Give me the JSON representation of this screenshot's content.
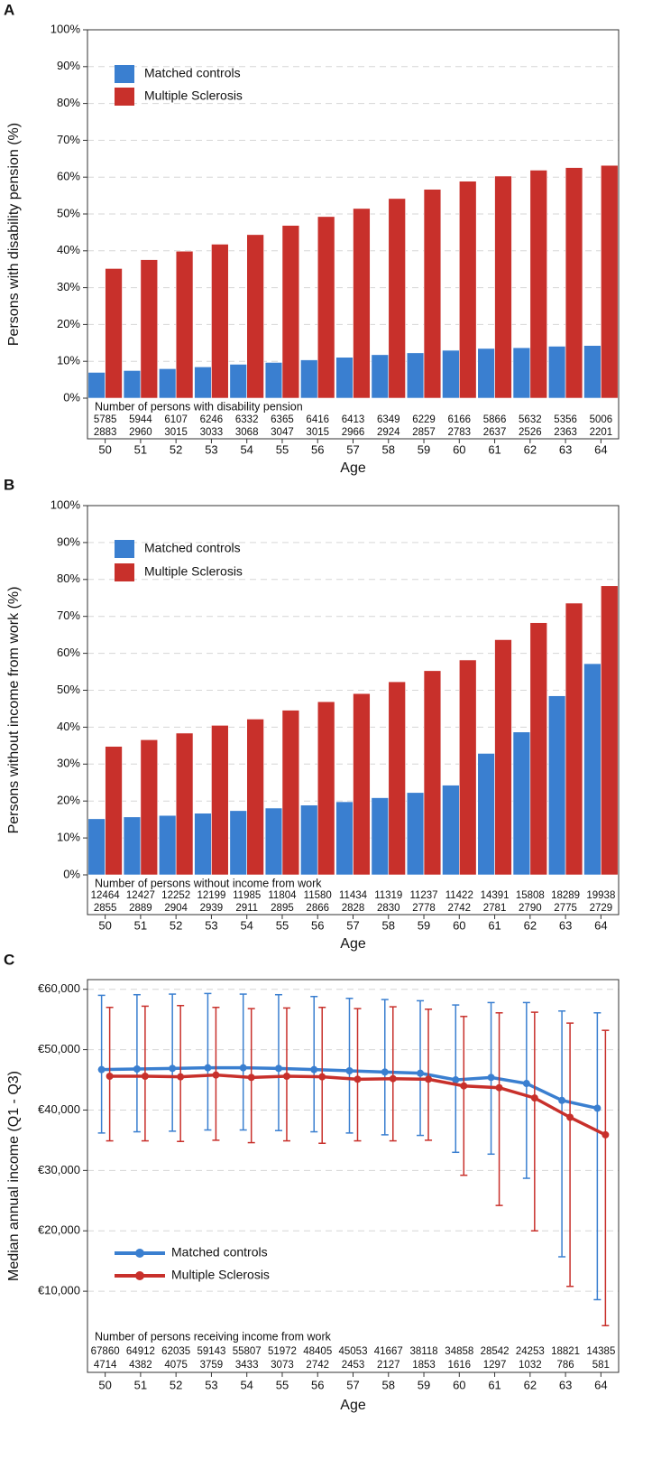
{
  "chart_data": [
    {
      "type": "bar",
      "panel": "A",
      "y_label": "Persons with disability pension (%)",
      "x_label": "Age",
      "categories": [
        "50",
        "51",
        "52",
        "53",
        "54",
        "55",
        "56",
        "57",
        "58",
        "59",
        "60",
        "61",
        "62",
        "63",
        "64"
      ],
      "counts_title": "Number of persons with disability pension",
      "series": [
        {
          "name": "Matched controls",
          "color": "#3a7fd0",
          "values": [
            7,
            7.5,
            8,
            8.5,
            9.2,
            9.7,
            10.4,
            11.1,
            11.8,
            12.3,
            13,
            13.5,
            13.7,
            14.1,
            14.3
          ],
          "counts": [
            5785,
            5944,
            6107,
            6246,
            6332,
            6365,
            6416,
            6413,
            6349,
            6229,
            6166,
            5866,
            5632,
            5356,
            5006
          ]
        },
        {
          "name": "Multiple Sclerosis",
          "color": "#c8302b",
          "values": [
            35.2,
            37.6,
            39.9,
            41.8,
            44.4,
            46.9,
            49.3,
            51.5,
            54.2,
            56.7,
            58.9,
            60.3,
            61.9,
            62.6,
            63.2
          ],
          "counts": [
            2883,
            2960,
            3015,
            3033,
            3068,
            3047,
            3015,
            2966,
            2924,
            2857,
            2783,
            2637,
            2526,
            2363,
            2201
          ]
        }
      ],
      "ylim": [
        0,
        100
      ],
      "yticks": [
        {
          "value": 0,
          "label": "0%"
        },
        {
          "value": 10,
          "label": "10%"
        },
        {
          "value": 20,
          "label": "20%"
        },
        {
          "value": 30,
          "label": "30%"
        },
        {
          "value": 40,
          "label": "40%"
        },
        {
          "value": 50,
          "label": "50%"
        },
        {
          "value": 60,
          "label": "60%"
        },
        {
          "value": 70,
          "label": "70%"
        },
        {
          "value": 80,
          "label": "80%"
        },
        {
          "value": 90,
          "label": "90%"
        },
        {
          "value": 100,
          "label": "100%"
        }
      ],
      "grid": true,
      "legend": "upper left"
    },
    {
      "type": "bar",
      "panel": "B",
      "y_label": "Persons without income from work (%)",
      "x_label": "Age",
      "categories": [
        "50",
        "51",
        "52",
        "53",
        "54",
        "55",
        "56",
        "57",
        "58",
        "59",
        "60",
        "61",
        "62",
        "63",
        "64"
      ],
      "counts_title": "Number of persons without income from work",
      "series": [
        {
          "name": "Matched controls",
          "color": "#3a7fd0",
          "values": [
            15.2,
            15.7,
            16.1,
            16.7,
            17.4,
            18.1,
            18.9,
            19.8,
            20.9,
            22.3,
            24.3,
            32.9,
            38.7,
            48.5,
            57.2
          ],
          "counts": [
            12464,
            12427,
            12252,
            12199,
            11985,
            11804,
            11580,
            11434,
            11319,
            11237,
            11422,
            14391,
            15808,
            18289,
            19938
          ]
        },
        {
          "name": "Multiple Sclerosis",
          "color": "#c8302b",
          "values": [
            34.8,
            36.6,
            38.4,
            40.5,
            42.2,
            44.6,
            46.9,
            49.1,
            52.3,
            55.3,
            58.2,
            63.7,
            68.3,
            73.6,
            78.3
          ],
          "counts": [
            2855,
            2889,
            2904,
            2939,
            2911,
            2895,
            2866,
            2828,
            2830,
            2778,
            2742,
            2781,
            2790,
            2775,
            2729
          ]
        }
      ],
      "ylim": [
        0,
        100
      ],
      "yticks": [
        {
          "value": 0,
          "label": "0%"
        },
        {
          "value": 10,
          "label": "10%"
        },
        {
          "value": 20,
          "label": "20%"
        },
        {
          "value": 30,
          "label": "30%"
        },
        {
          "value": 40,
          "label": "40%"
        },
        {
          "value": 50,
          "label": "50%"
        },
        {
          "value": 60,
          "label": "60%"
        },
        {
          "value": 70,
          "label": "70%"
        },
        {
          "value": 80,
          "label": "80%"
        },
        {
          "value": 90,
          "label": "90%"
        },
        {
          "value": 100,
          "label": "100%"
        }
      ],
      "grid": true,
      "legend": "upper left"
    },
    {
      "type": "line",
      "panel": "C",
      "y_label": "Median annual income (Q1 - Q3)",
      "x_label": "Age",
      "categories": [
        "50",
        "51",
        "52",
        "53",
        "54",
        "55",
        "56",
        "57",
        "58",
        "59",
        "60",
        "61",
        "62",
        "63",
        "64"
      ],
      "counts_title": "Number of persons receiving income from work",
      "series": [
        {
          "name": "Matched controls",
          "color": "#3a7fd0",
          "values": [
            46700,
            46800,
            46900,
            47000,
            47000,
            46900,
            46700,
            46500,
            46300,
            46100,
            45000,
            45400,
            44400,
            41600,
            40300
          ],
          "low": [
            36200,
            36400,
            36500,
            36700,
            36700,
            36600,
            36400,
            36200,
            35900,
            35800,
            33000,
            32700,
            28700,
            15700,
            8600
          ],
          "high": [
            59000,
            59100,
            59200,
            59300,
            59200,
            59100,
            58800,
            58500,
            58300,
            58100,
            57400,
            57800,
            57800,
            56400,
            56100
          ],
          "counts": [
            67860,
            64912,
            62035,
            59143,
            55807,
            51972,
            48405,
            45053,
            41667,
            38118,
            34858,
            28542,
            24253,
            18821,
            14385
          ]
        },
        {
          "name": "Multiple Sclerosis",
          "color": "#c8302b",
          "values": [
            45600,
            45600,
            45500,
            45800,
            45400,
            45600,
            45500,
            45100,
            45200,
            45100,
            44000,
            43700,
            42000,
            38800,
            35900
          ],
          "low": [
            34900,
            34900,
            34800,
            35000,
            34600,
            34900,
            34500,
            34900,
            34900,
            35000,
            29200,
            24200,
            20000,
            10800,
            4300
          ],
          "high": [
            57000,
            57200,
            57300,
            57000,
            56800,
            56900,
            57000,
            56800,
            57100,
            56700,
            55500,
            56100,
            56200,
            54400,
            53200
          ],
          "counts": [
            4714,
            4382,
            4075,
            3759,
            3433,
            3073,
            2742,
            2453,
            2127,
            1853,
            1616,
            1297,
            1032,
            786,
            581
          ]
        }
      ],
      "ylim": [
        0,
        61600
      ],
      "yticks": [
        {
          "value": 10000,
          "label": "€10,000"
        },
        {
          "value": 20000,
          "label": "€20,000"
        },
        {
          "value": 30000,
          "label": "€30,000"
        },
        {
          "value": 40000,
          "label": "€40,000"
        },
        {
          "value": 50000,
          "label": "€50,000"
        },
        {
          "value": 60000,
          "label": "€60,000"
        }
      ],
      "grid": true,
      "legend": "lower left"
    }
  ]
}
